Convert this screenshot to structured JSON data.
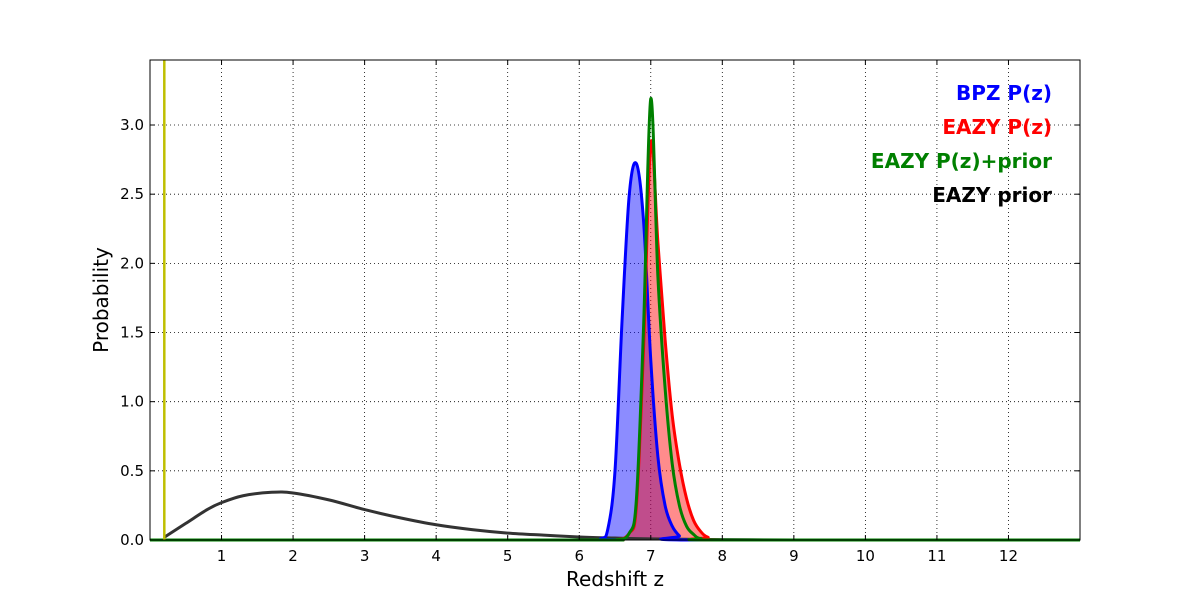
{
  "chart_data": {
    "type": "line",
    "title": "",
    "xlabel": "Redshift z",
    "ylabel": "Probability",
    "xlim": [
      0,
      13
    ],
    "ylim": [
      0,
      3.47
    ],
    "xticks": [
      1,
      2,
      3,
      4,
      5,
      6,
      7,
      8,
      9,
      10,
      11,
      12
    ],
    "yticks": [
      0.0,
      0.5,
      1.0,
      1.5,
      2.0,
      2.5,
      3.0
    ],
    "xtick_labels": [
      "1",
      "2",
      "3",
      "4",
      "5",
      "6",
      "7",
      "8",
      "9",
      "10",
      "11",
      "12"
    ],
    "ytick_labels": [
      "0.0",
      "0.5",
      "1.0",
      "1.5",
      "2.0",
      "2.5",
      "3.0"
    ],
    "grid": true,
    "grid_style": "dotted",
    "legend_position": "top-right",
    "vertical_line": {
      "x": 0.2,
      "color": "#bfbf00"
    },
    "series": [
      {
        "name": "BPZ P(z)",
        "color": "#0000ff",
        "fill": "#8080ff",
        "filled": true,
        "x": [
          0,
          6.0,
          6.3,
          6.4,
          6.5,
          6.6,
          6.7,
          6.8,
          6.9,
          7.0,
          7.1,
          7.2,
          7.3,
          7.4,
          7.5,
          12.0,
          13.0
        ],
        "values": [
          0,
          0,
          0.01,
          0.08,
          0.5,
          1.6,
          2.5,
          2.72,
          2.3,
          1.3,
          0.6,
          0.25,
          0.1,
          0.03,
          0.0,
          0.0,
          0.0
        ]
      },
      {
        "name": "EAZY P(z)",
        "color": "#ff0000",
        "fill": "#e8a098",
        "filled": true,
        "x": [
          0,
          6.0,
          6.5,
          6.7,
          6.8,
          6.9,
          7.0,
          7.1,
          7.2,
          7.3,
          7.4,
          7.5,
          7.6,
          7.7,
          7.8,
          8.0,
          13.0
        ],
        "values": [
          0,
          0,
          0.0,
          0.05,
          0.25,
          1.4,
          2.87,
          2.15,
          1.45,
          0.9,
          0.55,
          0.3,
          0.14,
          0.06,
          0.02,
          0.0,
          0.0
        ]
      },
      {
        "name": "EAZY P(z)+prior",
        "color": "#008000",
        "fill": "none",
        "filled": false,
        "x": [
          0,
          6.0,
          6.5,
          6.7,
          6.8,
          6.9,
          7.0,
          7.1,
          7.2,
          7.3,
          7.4,
          7.5,
          7.6,
          7.7,
          8.0,
          13.0
        ],
        "values": [
          0,
          0,
          0.0,
          0.05,
          0.3,
          1.55,
          3.19,
          1.9,
          1.1,
          0.55,
          0.25,
          0.1,
          0.04,
          0.01,
          0.0,
          0.0
        ]
      },
      {
        "name": "EAZY prior",
        "color": "#333333",
        "fill": "none",
        "filled": false,
        "x": [
          0.2,
          0.5,
          0.8,
          1.0,
          1.3,
          1.7,
          2.0,
          2.5,
          3.0,
          3.5,
          4.0,
          4.5,
          5.0,
          5.5,
          6.0,
          6.5,
          7.0,
          8.0,
          9.0
        ],
        "values": [
          0.02,
          0.12,
          0.22,
          0.27,
          0.32,
          0.345,
          0.34,
          0.29,
          0.22,
          0.16,
          0.11,
          0.075,
          0.05,
          0.035,
          0.022,
          0.014,
          0.008,
          0.003,
          0.0
        ]
      }
    ]
  }
}
